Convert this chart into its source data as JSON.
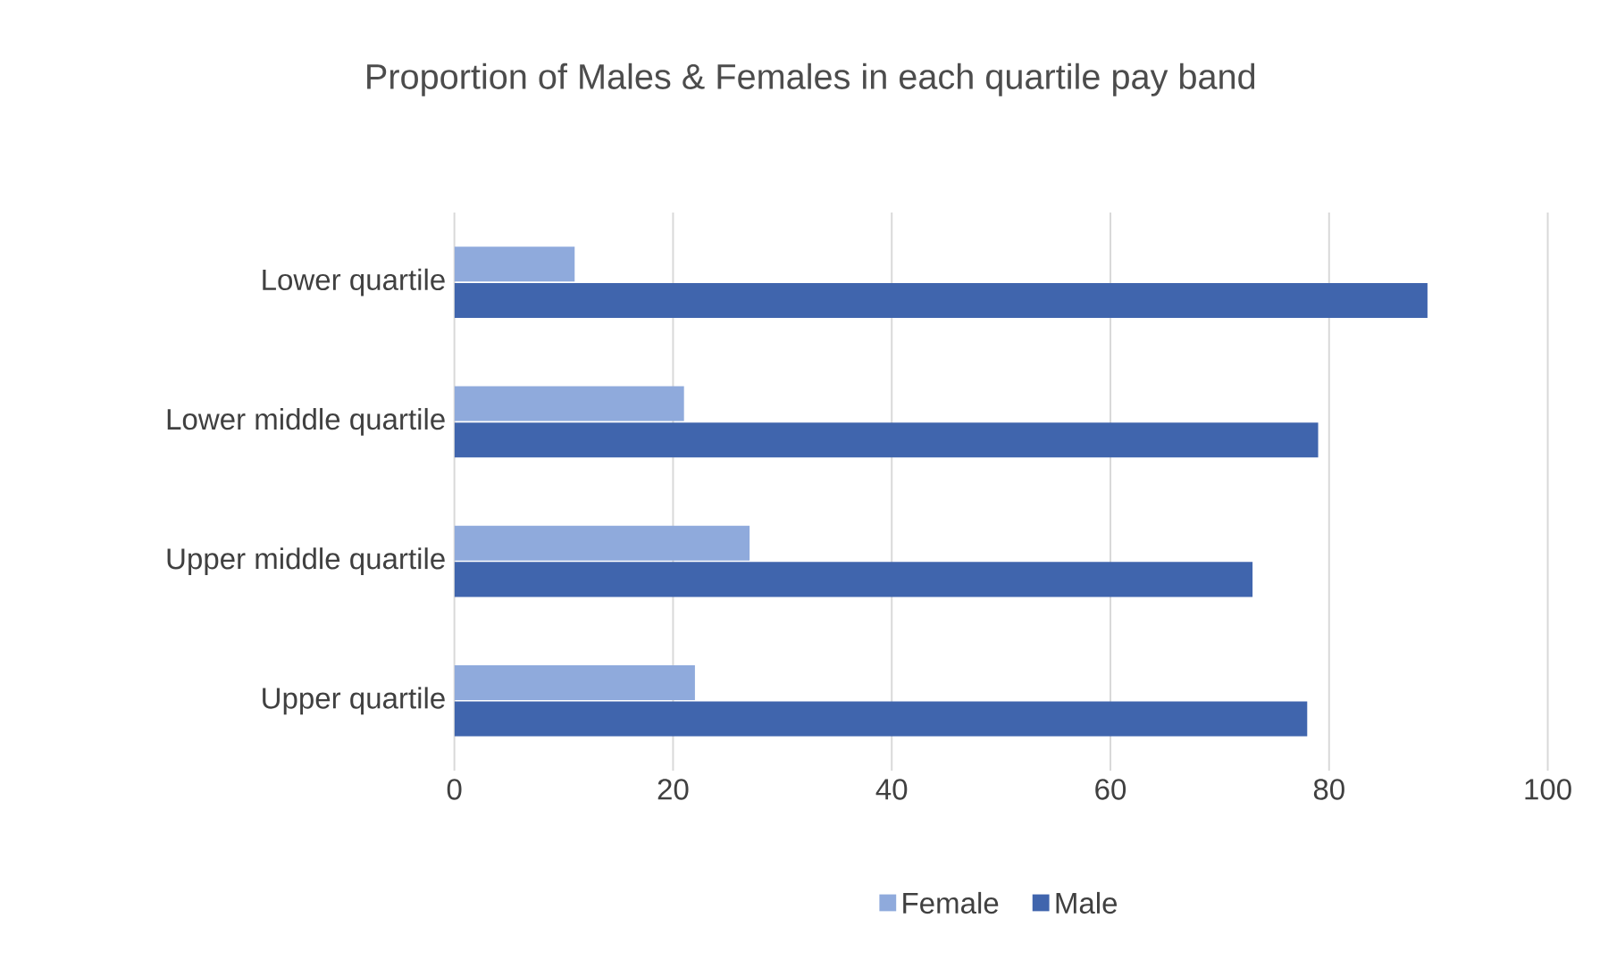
{
  "chart_data": {
    "type": "bar",
    "orientation": "horizontal",
    "title": "Proportion of Males & Females in each quartile pay band",
    "categories": [
      "Lower quartile",
      "Lower middle quartile",
      "Upper middle quartile",
      "Upper quartile"
    ],
    "series": [
      {
        "name": "Female",
        "color": "#8faadc",
        "values": [
          11,
          21,
          27,
          22
        ]
      },
      {
        "name": "Male",
        "color": "#4065ad",
        "values": [
          89,
          79,
          73,
          78
        ]
      }
    ],
    "xlim": [
      0,
      100
    ],
    "xticks": [
      0,
      20,
      40,
      60,
      80,
      100
    ],
    "grid": "x",
    "legend": "bottom"
  }
}
